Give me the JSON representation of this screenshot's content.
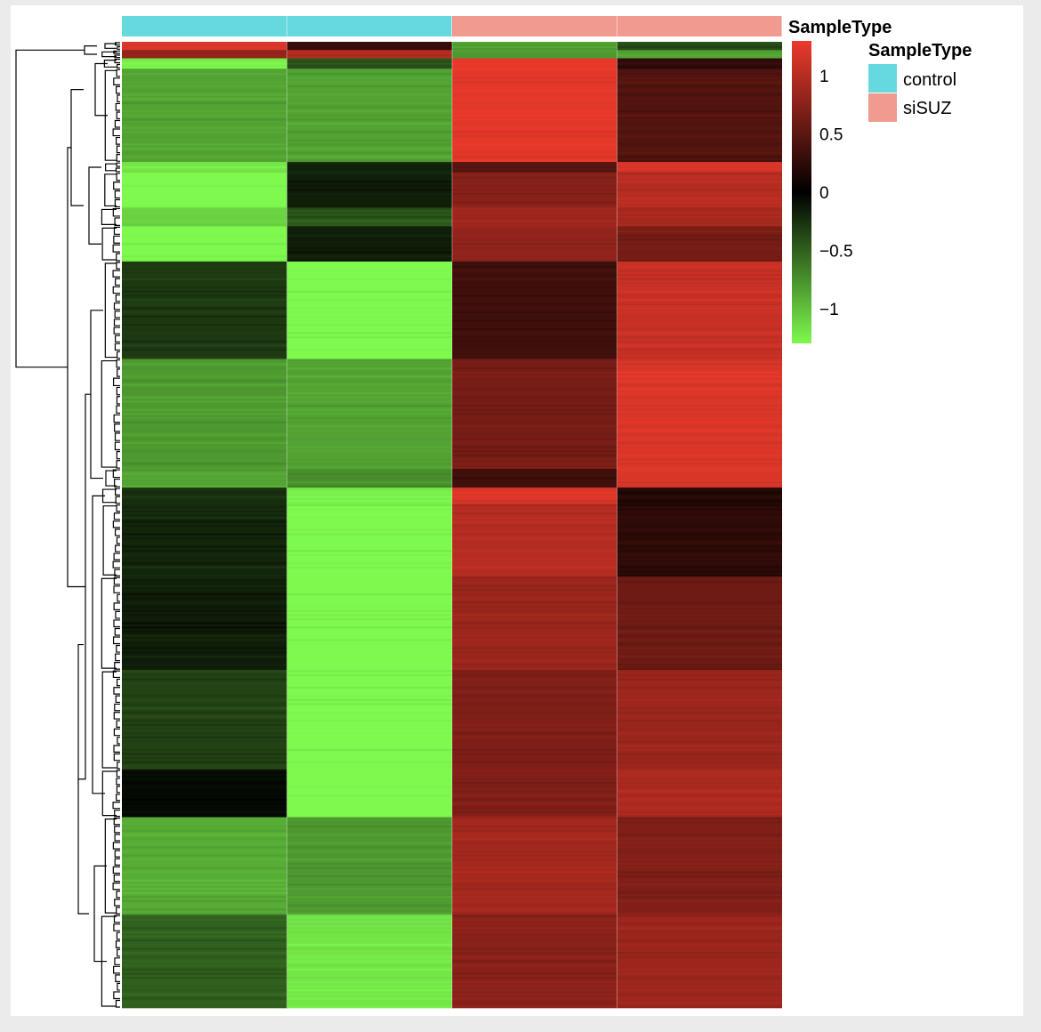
{
  "chart_data": {
    "type": "heatmap",
    "annotation": {
      "label": "SampleType",
      "columns": [
        "control",
        "control",
        "siSUZ",
        "siSUZ"
      ]
    },
    "legend": {
      "title": "SampleType",
      "entries": [
        {
          "label": "control",
          "color": "#66d9de"
        },
        {
          "label": "siSUZ",
          "color": "#f19a8f"
        }
      ]
    },
    "colorbar": {
      "range": [
        -1.3,
        1.3
      ],
      "ticks": [
        {
          "value": 1,
          "label": "1"
        },
        {
          "value": 0.5,
          "label": "0.5"
        },
        {
          "value": 0,
          "label": "0"
        },
        {
          "value": -0.5,
          "label": "−0.5"
        },
        {
          "value": -1,
          "label": "−1"
        }
      ],
      "colors": {
        "low": "#7ef94e",
        "mid": "#000000",
        "high": "#ec3a2c"
      }
    },
    "row_blocks": [
      {
        "rows": 4,
        "values": [
          1.2,
          0.3,
          -0.8,
          -0.4
        ]
      },
      {
        "rows": 4,
        "values": [
          0.8,
          1.0,
          -0.8,
          -0.85
        ]
      },
      {
        "rows": 5,
        "values": [
          -1.25,
          -0.4,
          1.25,
          0.25
        ]
      },
      {
        "rows": 45,
        "values": [
          -0.85,
          -0.85,
          1.25,
          0.45
        ]
      },
      {
        "rows": 5,
        "values": [
          -1.2,
          -0.15,
          0.5,
          1.2
        ]
      },
      {
        "rows": 17,
        "values": [
          -1.3,
          -0.15,
          0.75,
          1.0
        ]
      },
      {
        "rows": 9,
        "values": [
          -1.1,
          -0.45,
          0.85,
          0.9
        ]
      },
      {
        "rows": 17,
        "values": [
          -1.3,
          -0.15,
          0.8,
          0.65
        ]
      },
      {
        "rows": 47,
        "values": [
          -0.3,
          -1.3,
          0.35,
          1.1
        ]
      },
      {
        "rows": 53,
        "values": [
          -0.8,
          -0.85,
          0.65,
          1.2
        ]
      },
      {
        "rows": 9,
        "values": [
          -0.85,
          -0.75,
          0.35,
          1.2
        ]
      },
      {
        "rows": 8,
        "values": [
          -0.25,
          -1.25,
          1.2,
          0.2
        ]
      },
      {
        "rows": 35,
        "values": [
          -0.2,
          -1.3,
          1.0,
          0.25
        ]
      },
      {
        "rows": 45,
        "values": [
          -0.15,
          -1.3,
          0.85,
          0.6
        ]
      },
      {
        "rows": 48,
        "values": [
          -0.35,
          -1.3,
          0.7,
          0.85
        ]
      },
      {
        "rows": 23,
        "values": [
          -0.05,
          -1.35,
          0.7,
          0.95
        ]
      },
      {
        "rows": 47,
        "values": [
          -0.9,
          -0.8,
          0.9,
          0.7
        ]
      },
      {
        "rows": 45,
        "values": [
          -0.5,
          -1.2,
          0.75,
          0.85
        ]
      }
    ]
  }
}
